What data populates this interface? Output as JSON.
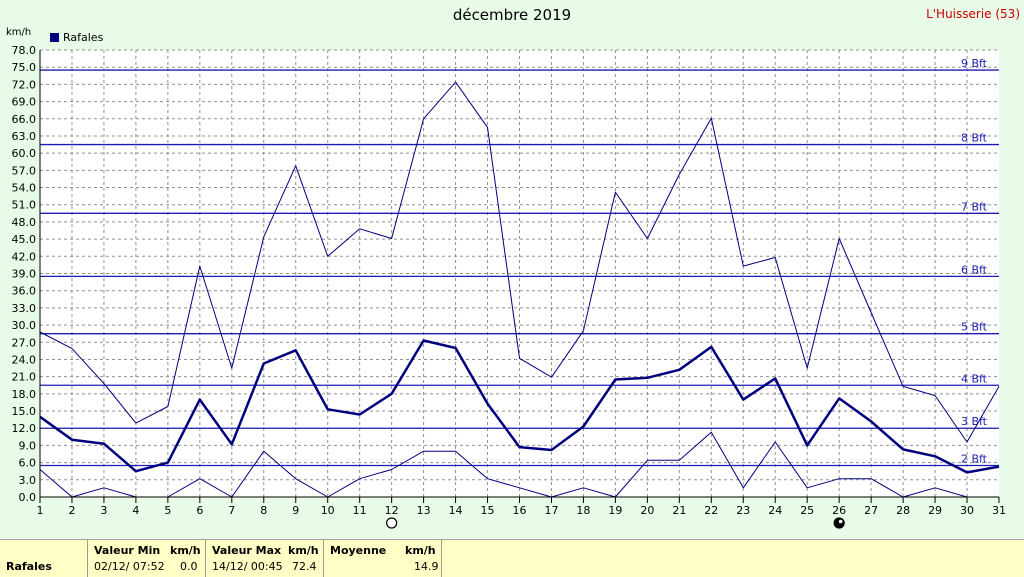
{
  "title": "décembre 2019",
  "station": "L'Huisserie (53)",
  "unit_label": "km/h",
  "legend": {
    "label": "Rafales",
    "color": "#00007f"
  },
  "footer": {
    "series_label": "Rafales",
    "min": {
      "header": "Valeur Min",
      "unit": "km/h",
      "time": "02/12/  07:52",
      "value": "0.0"
    },
    "max": {
      "header": "Valeur Max",
      "unit": "km/h",
      "time": "14/12/  00:45",
      "value": "72.4"
    },
    "avg": {
      "header": "Moyenne",
      "unit": "km/h",
      "value": "14.9"
    }
  },
  "moon_phases": [
    {
      "day": 12,
      "phase": "full"
    },
    {
      "day": 26,
      "phase": "new"
    }
  ],
  "chart_data": {
    "type": "line",
    "x": [
      1,
      2,
      3,
      4,
      5,
      6,
      7,
      8,
      9,
      10,
      11,
      12,
      13,
      14,
      15,
      16,
      17,
      18,
      19,
      20,
      21,
      22,
      23,
      24,
      25,
      26,
      27,
      28,
      29,
      30,
      31
    ],
    "xlim": [
      1,
      31
    ],
    "ylim": [
      0,
      78
    ],
    "ytick_step": 3,
    "grid": true,
    "beaufort": [
      {
        "value": 5.5,
        "label": "2 Bft"
      },
      {
        "value": 12,
        "label": "3 Bft"
      },
      {
        "value": 19.5,
        "label": "4 Bft"
      },
      {
        "value": 28.5,
        "label": "5 Bft"
      },
      {
        "value": 38.5,
        "label": "6 Bft"
      },
      {
        "value": 49.5,
        "label": "7 Bft"
      },
      {
        "value": 61.5,
        "label": "8 Bft"
      },
      {
        "value": 74.5,
        "label": "9 Bft"
      }
    ],
    "series": [
      {
        "role": "max",
        "color": "#00007f",
        "width": 1,
        "values": [
          28.8,
          25.9,
          19.8,
          12.9,
          15.8,
          40.3,
          22.5,
          45.4,
          57.8,
          42.0,
          46.8,
          45.1,
          66.0,
          72.4,
          64.5,
          24.2,
          20.9,
          29.0,
          53.2,
          45.1,
          56.3,
          66.1,
          40.3,
          41.8,
          22.5,
          45.1,
          32.2,
          19.3,
          17.7,
          9.6,
          19.3
        ]
      },
      {
        "role": "avg",
        "color": "#00007f",
        "width": 2.5,
        "values": [
          14.0,
          10.0,
          9.3,
          4.5,
          6.0,
          17.0,
          9.2,
          23.3,
          25.6,
          15.3,
          14.4,
          18.0,
          27.3,
          26.0,
          16.3,
          8.7,
          8.2,
          12.3,
          20.5,
          20.8,
          22.2,
          26.2,
          17.0,
          20.7,
          9.0,
          17.2,
          13.2,
          8.3,
          7.1,
          4.3,
          5.3
        ]
      },
      {
        "role": "min",
        "color": "#00007f",
        "width": 1,
        "values": [
          4.8,
          0.0,
          1.6,
          0.0,
          0.0,
          3.2,
          0.0,
          8.0,
          3.2,
          0.0,
          3.2,
          4.8,
          8.0,
          8.0,
          3.2,
          1.6,
          0.0,
          1.6,
          0.0,
          6.4,
          6.4,
          11.3,
          1.6,
          9.6,
          1.6,
          3.2,
          3.2,
          0.0,
          1.6,
          0.0,
          0.0
        ]
      }
    ]
  }
}
